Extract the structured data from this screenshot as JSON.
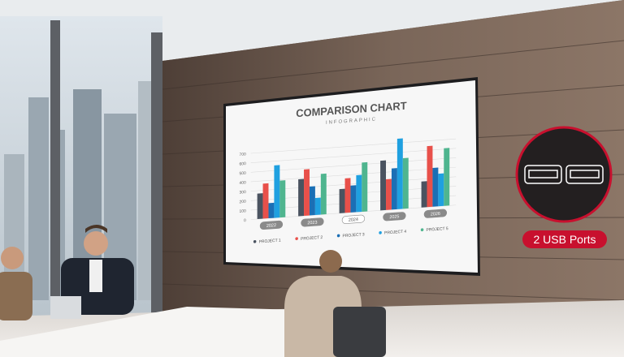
{
  "callout": {
    "label": "2 USB Ports",
    "icon": "usb-ports-icon",
    "accent": "#c8102e"
  },
  "screen": {
    "title": "COMPARISON CHART",
    "subtitle": "INFOGRAPHIC"
  },
  "chart_data": {
    "type": "bar",
    "title": "COMPARISON CHART",
    "subtitle": "INFOGRAPHIC",
    "categories": [
      "2022",
      "2023",
      "2024",
      "2025",
      "2026"
    ],
    "yticks": [
      "0",
      "100",
      "200",
      "300",
      "400",
      "500",
      "600",
      "700"
    ],
    "ylim": [
      0,
      700
    ],
    "grid": true,
    "legend_position": "bottom",
    "series": [
      {
        "name": "PROJECT 1",
        "color": "#4a5360",
        "values": [
          270,
          390,
          255,
          525,
          275
        ]
      },
      {
        "name": "PROJECT 2",
        "color": "#e8504a",
        "values": [
          370,
          490,
          365,
          325,
          645
        ]
      },
      {
        "name": "PROJECT 3",
        "color": "#1b6fb5",
        "values": [
          160,
          305,
          285,
          435,
          410
        ]
      },
      {
        "name": "PROJECT 4",
        "color": "#1fa0e0",
        "values": [
          555,
          180,
          390,
          745,
          345
        ]
      },
      {
        "name": "PROJECT 5",
        "color": "#4fb58f",
        "values": [
          390,
          430,
          520,
          535,
          610
        ]
      }
    ]
  }
}
